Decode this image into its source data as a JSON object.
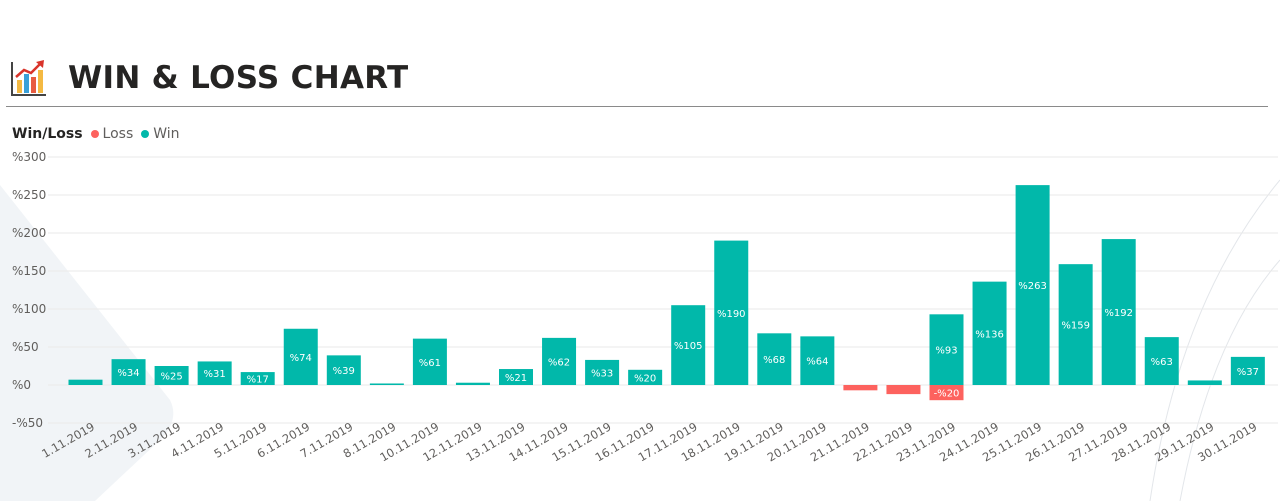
{
  "header": {
    "title": "WIN & LOSS CHART",
    "icon": "chart-growth-icon"
  },
  "colors": {
    "win": "#01B8AA",
    "loss": "#FD625E",
    "grid": "#eaeaea",
    "axis_text": "#605e5c"
  },
  "chart_data": {
    "type": "bar",
    "title": "WIN & LOSS CHART",
    "xlabel": "",
    "ylabel": "",
    "legend": {
      "title": "Win/Loss",
      "placement": "top-left",
      "entries": [
        "Loss",
        "Win"
      ]
    },
    "grid": true,
    "ylim": [
      -50,
      300
    ],
    "yticks": [
      300,
      250,
      200,
      150,
      100,
      50,
      0,
      -50
    ],
    "ytick_labels": [
      "%300",
      "%250",
      "%200",
      "%150",
      "%100",
      "%50",
      "%0",
      "-%50"
    ],
    "categories": [
      "1.11.2019",
      "2.11.2019",
      "3.11.2019",
      "4.11.2019",
      "5.11.2019",
      "6.11.2019",
      "7.11.2019",
      "8.11.2019",
      "10.11.2019",
      "12.11.2019",
      "13.11.2019",
      "14.11.2019",
      "15.11.2019",
      "16.11.2019",
      "17.11.2019",
      "18.11.2019",
      "19.11.2019",
      "20.11.2019",
      "21.11.2019",
      "22.11.2019",
      "23.11.2019",
      "24.11.2019",
      "25.11.2019",
      "26.11.2019",
      "27.11.2019",
      "28.11.2019",
      "29.11.2019",
      "30.11.2019"
    ],
    "series": [
      {
        "name": "Loss",
        "values": [
          null,
          null,
          null,
          null,
          null,
          null,
          null,
          null,
          null,
          null,
          null,
          null,
          null,
          null,
          null,
          null,
          null,
          null,
          -7,
          -12,
          -20,
          null,
          null,
          null,
          null,
          null,
          null,
          null
        ]
      },
      {
        "name": "Win",
        "values": [
          7,
          34,
          25,
          31,
          17,
          74,
          39,
          2,
          61,
          3,
          21,
          62,
          33,
          20,
          105,
          190,
          68,
          64,
          null,
          null,
          93,
          136,
          263,
          159,
          192,
          63,
          6,
          37
        ]
      }
    ],
    "data_labels": [
      "",
      "%34",
      "%25",
      "%31",
      "%17",
      "%74",
      "%39",
      "",
      "%61",
      "",
      "%21",
      "%62",
      "%33",
      "%20",
      "%105",
      "%190",
      "%68",
      "%64",
      "",
      "",
      "%93 | -%20",
      "%136",
      "%263",
      "%159",
      "%192",
      "%63",
      "",
      "%37"
    ],
    "label_texts": {
      "win": [
        "",
        "%34",
        "%25",
        "%31",
        "%17",
        "%74",
        "%39",
        "",
        "%61",
        "",
        "%21",
        "%62",
        "%33",
        "%20",
        "%105",
        "%190",
        "%68",
        "%64",
        "",
        "",
        "%93",
        "%136",
        "%263",
        "%159",
        "%192",
        "%63",
        "",
        "%37"
      ],
      "loss": [
        "",
        "",
        "",
        "",
        "",
        "",
        "",
        "",
        "",
        "",
        "",
        "",
        "",
        "",
        "",
        "",
        "",
        "",
        "",
        "",
        "-%20",
        "",
        "",
        "",
        "",
        "",
        "",
        ""
      ]
    }
  }
}
